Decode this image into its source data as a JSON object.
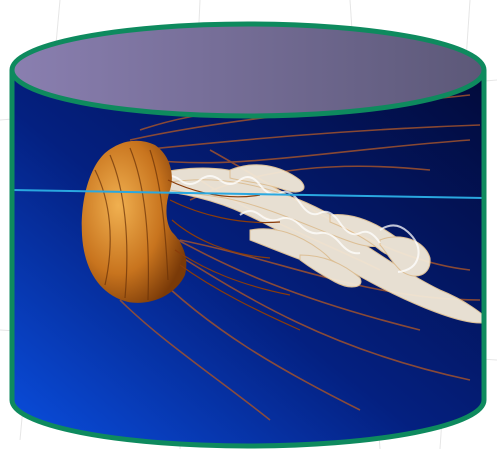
{
  "image": {
    "kind": "cylinder-shaped picture of a jellyfish",
    "colors": {
      "cylinder_outline": "#0e8a5e",
      "lid_top": "#8a7fb0",
      "lid_right": "#5c5878",
      "water_deep": "#020a3a",
      "water_light": "#0a4fe0",
      "bell_dark": "#7a3a08",
      "bell_light": "#f0b050",
      "horizon_line": "#2aa8e0"
    },
    "icons": [
      "cylinder-shape",
      "jellyfish-illustration"
    ]
  }
}
